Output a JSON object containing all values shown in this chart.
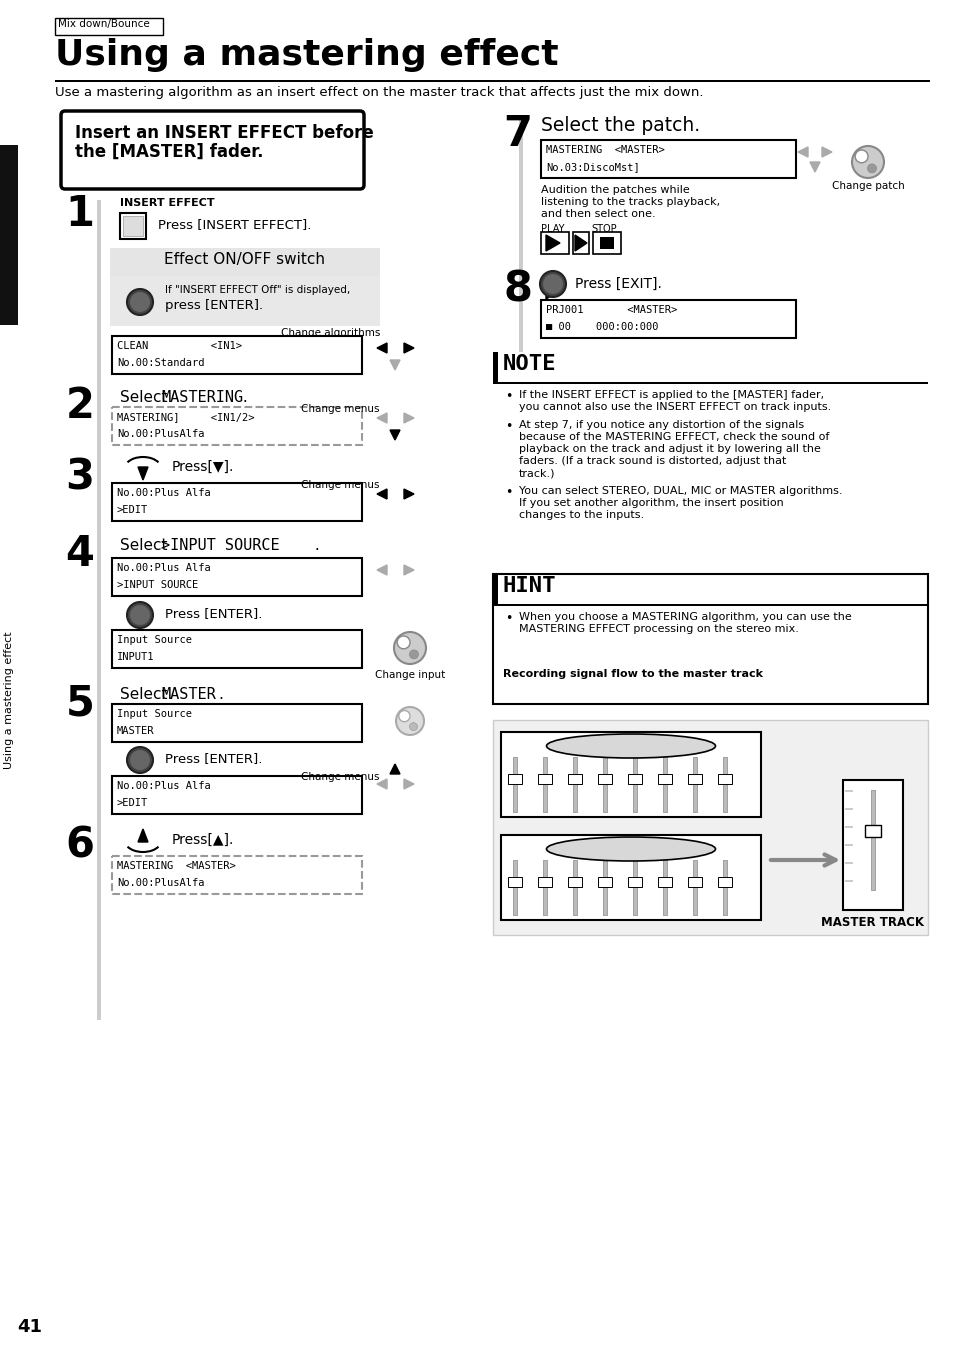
{
  "title": "Using a mastering effect",
  "subtitle": "Use a mastering algorithm as an insert effect on the master track that affects just the mix down.",
  "breadcrumb": "Mix down/Bounce",
  "sidebar_text": "Using a mastering effect",
  "page_number": "41",
  "bg_color": "#ffffff",
  "insert_box_text_line1": "Insert an INSERT EFFECT before",
  "insert_box_text_line2": "the [MASTER] fader.",
  "note_title": "NOTE",
  "note_bullets": [
    "If the INSERT EFFECT is applied to the [MASTER] fader, you cannot also use the INSERT EFFECT on track inputs.",
    "At step 7, if you notice any distortion of the signals because of the MASTERING EFFECT, check the sound of playback on the track and adjust it by lowering all the faders. (If a track sound  is distorted, adjust that track.)",
    "You can select STEREO, DUAL, MIC or MASTER algorithms. If you set another algorithm, the insert position changes to the inputs."
  ],
  "hint_title": "HINT",
  "hint_bullet": "When you choose a MASTERING algorithm, you can use the MASTERING EFFECT processing on the stereo mix.",
  "hint_extra": "Recording signal flow to the master track"
}
